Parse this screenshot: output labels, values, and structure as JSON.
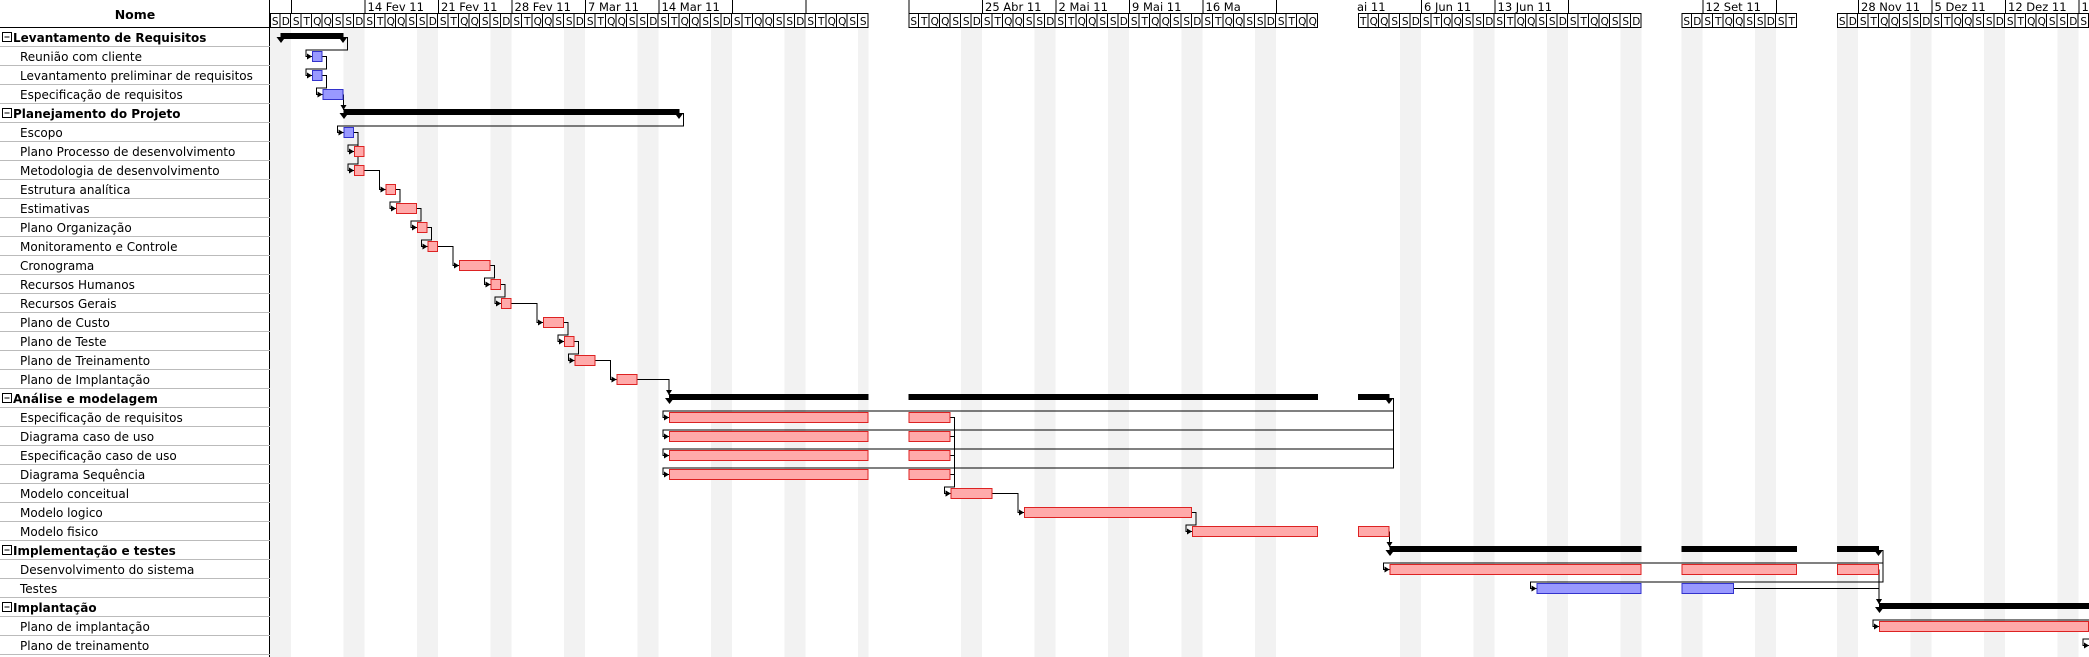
{
  "header": {
    "name_column": "Nome"
  },
  "timeline": {
    "segments": [
      {
        "start": "2011-02-05",
        "days": 57
      },
      {
        "start": "2011-04-18",
        "days": 39
      },
      {
        "start": "2011-05-31",
        "days": 27
      },
      {
        "start": "2011-09-10",
        "days": 11
      },
      {
        "start": "2011-11-26",
        "days": 29
      }
    ],
    "week_labels": [
      {
        "date": "2011-02-14",
        "label": "14 Fev 11"
      },
      {
        "date": "2011-02-21",
        "label": "21 Fev 11"
      },
      {
        "date": "2011-02-28",
        "label": "28 Fev 11"
      },
      {
        "date": "2011-03-07",
        "label": "7 Mar 11"
      },
      {
        "date": "2011-03-14",
        "label": "14 Mar 11"
      },
      {
        "date": "2011-04-25",
        "label": "25 Abr 11"
      },
      {
        "date": "2011-05-02",
        "label": "2 Mai 11"
      },
      {
        "date": "2011-05-09",
        "label": "9 Mai 11"
      },
      {
        "date": "2011-05-16",
        "label": "16 Ma"
      },
      {
        "date": "2011-05-30",
        "label": "ai 11"
      },
      {
        "date": "2011-06-06",
        "label": "6 Jun 11"
      },
      {
        "date": "2011-06-13",
        "label": "13 Jun 11"
      },
      {
        "date": "2011-09-12",
        "label": "12 Set 11"
      },
      {
        "date": "2011-11-28",
        "label": "28 Nov 11"
      },
      {
        "date": "2011-12-05",
        "label": "5 Dez 11"
      },
      {
        "date": "2011-12-12",
        "label": "12 Dez 11"
      },
      {
        "date": "2011-12-19",
        "label": "19 Dez"
      }
    ],
    "day_letters": [
      "D",
      "S",
      "T",
      "Q",
      "Q",
      "S",
      "S"
    ]
  },
  "colors": {
    "summary_bar": "#000000",
    "task_blue": "#9999ff",
    "task_blue_border": "#3333cc",
    "task_red": "#ffaaaa",
    "task_red_border": "#dd2222",
    "weekend_shade": "#f2f2f2"
  },
  "tasks": [
    {
      "name": "Levantamento de Requisitos",
      "summary": true,
      "start": "2011-02-06",
      "end": "2011-02-11"
    },
    {
      "name": "Reunião com cliente",
      "summary": false,
      "color": "blue",
      "start": "2011-02-09",
      "end": "2011-02-09"
    },
    {
      "name": "Levantamento preliminar de requisitos",
      "summary": false,
      "color": "blue",
      "start": "2011-02-09",
      "end": "2011-02-09"
    },
    {
      "name": "Especificação de requisitos",
      "summary": false,
      "color": "blue",
      "start": "2011-02-10",
      "end": "2011-02-11"
    },
    {
      "name": "Planejamento do Projeto",
      "summary": true,
      "start": "2011-02-12",
      "end": "2011-03-15"
    },
    {
      "name": "Escopo",
      "summary": false,
      "color": "blue",
      "start": "2011-02-12",
      "end": "2011-02-12"
    },
    {
      "name": "Plano Processo de desenvolvimento",
      "summary": false,
      "color": "red",
      "start": "2011-02-13",
      "end": "2011-02-13"
    },
    {
      "name": "Metodologia de desenvolvimento",
      "summary": false,
      "color": "red",
      "start": "2011-02-13",
      "end": "2011-02-13"
    },
    {
      "name": "Estrutura analítica",
      "summary": false,
      "color": "red",
      "start": "2011-02-16",
      "end": "2011-02-16"
    },
    {
      "name": "Estimativas",
      "summary": false,
      "color": "red",
      "start": "2011-02-17",
      "end": "2011-02-18"
    },
    {
      "name": "Plano Organização",
      "summary": false,
      "color": "red",
      "start": "2011-02-19",
      "end": "2011-02-19"
    },
    {
      "name": "Monitoramento e Controle",
      "summary": false,
      "color": "red",
      "start": "2011-02-20",
      "end": "2011-02-20"
    },
    {
      "name": "Cronograma",
      "summary": false,
      "color": "red",
      "start": "2011-02-23",
      "end": "2011-02-25"
    },
    {
      "name": "Recursos Humanos",
      "summary": false,
      "color": "red",
      "start": "2011-02-26",
      "end": "2011-02-26"
    },
    {
      "name": "Recursos Gerais",
      "summary": false,
      "color": "red",
      "start": "2011-02-27",
      "end": "2011-02-27"
    },
    {
      "name": "Plano de Custo",
      "summary": false,
      "color": "red",
      "start": "2011-03-03",
      "end": "2011-03-04"
    },
    {
      "name": "Plano de Teste",
      "summary": false,
      "color": "red",
      "start": "2011-03-05",
      "end": "2011-03-05"
    },
    {
      "name": "Plano de Treinamento",
      "summary": false,
      "color": "red",
      "start": "2011-03-06",
      "end": "2011-03-07"
    },
    {
      "name": "Plano de Implantação",
      "summary": false,
      "color": "red",
      "start": "2011-03-10",
      "end": "2011-03-11"
    },
    {
      "name": "Análise e modelagem",
      "summary": true,
      "start": "2011-03-15",
      "end": "2011-06-02"
    },
    {
      "name": "Especificação de requisitos",
      "summary": false,
      "color": "red",
      "start": "2011-03-15",
      "end": "2011-04-21"
    },
    {
      "name": "Diagrama caso de uso",
      "summary": false,
      "color": "red",
      "start": "2011-03-15",
      "end": "2011-04-21"
    },
    {
      "name": "Especificação caso de uso",
      "summary": false,
      "color": "red",
      "start": "2011-03-15",
      "end": "2011-04-21"
    },
    {
      "name": "Diagrama Sequência",
      "summary": false,
      "color": "red",
      "start": "2011-03-15",
      "end": "2011-04-21"
    },
    {
      "name": "Modelo conceitual",
      "summary": false,
      "color": "red",
      "start": "2011-04-22",
      "end": "2011-04-25"
    },
    {
      "name": "Modelo logico",
      "summary": false,
      "color": "red",
      "start": "2011-04-29",
      "end": "2011-05-14"
    },
    {
      "name": "Modelo fisico",
      "summary": false,
      "color": "red",
      "start": "2011-05-15",
      "end": "2011-06-02"
    },
    {
      "name": "Implementação e testes",
      "summary": true,
      "start": "2011-06-03",
      "end": "2011-11-29"
    },
    {
      "name": "Desenvolvimento do sistema",
      "summary": false,
      "color": "red",
      "start": "2011-06-03",
      "end": "2011-11-29"
    },
    {
      "name": "Testes",
      "summary": false,
      "color": "blue",
      "start": "2011-06-17",
      "end": "2011-09-14"
    },
    {
      "name": "Implantação",
      "summary": true,
      "start": "2011-11-30",
      "end": "2011-12-22"
    },
    {
      "name": "Plano de implantação",
      "summary": false,
      "color": "red",
      "start": "2011-11-30",
      "end": "2011-12-19"
    },
    {
      "name": "Plano de treinamento",
      "summary": false,
      "color": "red",
      "start": "2011-12-20",
      "end": "2011-12-25"
    }
  ],
  "dependencies": [
    [
      0,
      1
    ],
    [
      1,
      2
    ],
    [
      2,
      3
    ],
    [
      3,
      4
    ],
    [
      4,
      5
    ],
    [
      5,
      6
    ],
    [
      5,
      7
    ],
    [
      7,
      8
    ],
    [
      8,
      9
    ],
    [
      9,
      10
    ],
    [
      10,
      11
    ],
    [
      11,
      12
    ],
    [
      12,
      13
    ],
    [
      13,
      14
    ],
    [
      14,
      15
    ],
    [
      15,
      16
    ],
    [
      16,
      17
    ],
    [
      17,
      18
    ],
    [
      18,
      19
    ],
    [
      19,
      20
    ],
    [
      19,
      21
    ],
    [
      19,
      22
    ],
    [
      19,
      23
    ],
    [
      20,
      24
    ],
    [
      21,
      24
    ],
    [
      22,
      24
    ],
    [
      23,
      24
    ],
    [
      24,
      25
    ],
    [
      25,
      26
    ],
    [
      26,
      27
    ],
    [
      27,
      28
    ],
    [
      27,
      29
    ],
    [
      28,
      30
    ],
    [
      29,
      30
    ],
    [
      30,
      31
    ],
    [
      31,
      32
    ]
  ]
}
